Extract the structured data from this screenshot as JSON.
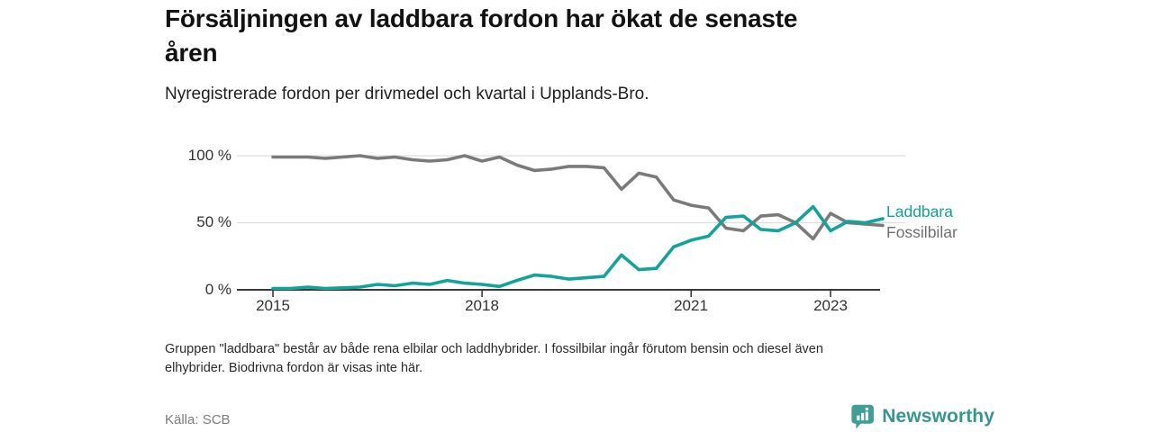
{
  "header": {
    "title_lines": [
      "Försäljningen av laddbara fordon har ökat de senaste",
      "åren"
    ],
    "subtitle": "Nyregistrerade fordon per drivmedel och kvartal i Upplands-Bro."
  },
  "chart_data": {
    "type": "line",
    "title": "Försäljningen av laddbara fordon har ökat de senaste åren",
    "subtitle": "Nyregistrerade fordon per drivmedel och kvartal i Upplands-Bro.",
    "x": [
      "2015 Q1",
      "2015 Q2",
      "2015 Q3",
      "2015 Q4",
      "2016 Q1",
      "2016 Q2",
      "2016 Q3",
      "2016 Q4",
      "2017 Q1",
      "2017 Q2",
      "2017 Q3",
      "2017 Q4",
      "2018 Q1",
      "2018 Q2",
      "2018 Q3",
      "2018 Q4",
      "2019 Q1",
      "2019 Q2",
      "2019 Q3",
      "2019 Q4",
      "2020 Q1",
      "2020 Q2",
      "2020 Q3",
      "2020 Q4",
      "2021 Q1",
      "2021 Q2",
      "2021 Q3",
      "2021 Q4",
      "2022 Q1",
      "2022 Q2",
      "2022 Q3",
      "2022 Q4",
      "2023 Q1",
      "2023 Q2",
      "2023 Q3",
      "2023 Q4"
    ],
    "series": [
      {
        "name": "Laddbara",
        "color": "#12a39a",
        "label_color": "#12a39a",
        "values": [
          1,
          1,
          2,
          1,
          1.5,
          2,
          4,
          3,
          5,
          4,
          7,
          5,
          4,
          2.5,
          7,
          11,
          10,
          8,
          9,
          10,
          26,
          15,
          16,
          32,
          37,
          40,
          54,
          55,
          45,
          44,
          50,
          62,
          44,
          51,
          50,
          53
        ]
      },
      {
        "name": "Fossilbilar",
        "color": "#7a7a7a",
        "label_color": "#707070",
        "values": [
          99,
          99,
          99,
          98,
          99,
          100,
          98,
          99,
          97,
          96,
          97,
          100,
          96,
          99,
          93,
          89,
          90,
          92,
          92,
          91,
          75,
          87,
          84,
          67,
          63,
          61,
          46,
          44,
          55,
          56,
          50,
          38,
          57,
          50,
          49,
          48
        ]
      }
    ],
    "ylim": [
      0,
      100
    ],
    "yticks": [
      "100 %",
      "50 %",
      "0 %"
    ],
    "ytick_values": [
      100,
      50,
      0
    ],
    "xticks": [
      "2015",
      "2018",
      "2021",
      "2023"
    ],
    "xtick_index": [
      0,
      12,
      24,
      32
    ],
    "grid": "horizontal",
    "legend_position": "right-of-line-end",
    "axis_color": "#3a3a3a",
    "grid_color": "#dddddd"
  },
  "footnote_lines": [
    "Gruppen \"laddbara\" består av både rena elbilar och laddhybrider. I fossilbilar ingår förutom bensin och diesel även",
    "elhybrider. Biodrivna fordon är visas inte här."
  ],
  "source": "Källa: SCB",
  "logo": {
    "text": "Newsworthy",
    "icon": "bar-chart-pin-icon",
    "icon_color": "#3f9f96",
    "text_color": "#35978f"
  }
}
